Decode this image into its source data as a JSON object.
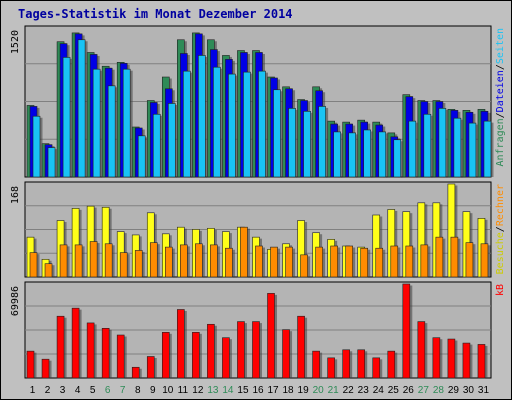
{
  "title": "Tages-Statistik im Monat Dezember 2014",
  "colors": {
    "background": "#c0c0c0",
    "plot": "#b4b4b4",
    "anfragen": "#2e8b57",
    "dateien": "#0000e6",
    "seiten": "#19c3f5",
    "besuche": "#ffff19",
    "rechner": "#ff8c00",
    "kb": "#ff0000",
    "weekday_label": "#000000",
    "weekend_label": "#2e8b57"
  },
  "legend": {
    "top": [
      {
        "label": "Anfragen",
        "color": "#2e8b57"
      },
      {
        "label": "/",
        "color": "#000000"
      },
      {
        "label": "Dateien",
        "color": "#0000e6"
      },
      {
        "label": "/",
        "color": "#000000"
      },
      {
        "label": "Seiten",
        "color": "#19c3f5"
      }
    ],
    "middle": [
      {
        "label": "Besuche",
        "color": "#cccc00"
      },
      {
        "label": "/",
        "color": "#000000"
      },
      {
        "label": "Rechner",
        "color": "#ff8c00"
      }
    ],
    "bottom": [
      {
        "label": "kB",
        "color": "#ff0000"
      }
    ]
  },
  "chart_data": {
    "type": "bar",
    "title": "Tages-Statistik im Monat Dezember 2014",
    "categories": [
      "1",
      "2",
      "3",
      "4",
      "5",
      "6",
      "7",
      "8",
      "9",
      "10",
      "11",
      "12",
      "13",
      "14",
      "15",
      "16",
      "17",
      "18",
      "19",
      "20",
      "21",
      "22",
      "23",
      "24",
      "25",
      "26",
      "27",
      "28",
      "29",
      "30",
      "31"
    ],
    "weekend_days": [
      "6",
      "7",
      "13",
      "14",
      "20",
      "21",
      "27",
      "28"
    ],
    "grid": true,
    "panels": [
      {
        "id": "top",
        "ylabel_max": "1520",
        "ylim": [
          0,
          1520
        ],
        "series": [
          {
            "name": "Anfragen",
            "color": "#2e8b57",
            "values": [
              730,
              340,
              1380,
              1470,
              1270,
              1130,
              1170,
              510,
              780,
              1020,
              1400,
              1470,
              1400,
              1240,
              1290,
              1290,
              1020,
              920,
              790,
              920,
              570,
              560,
              580,
              560,
              450,
              840,
              780,
              780,
              690,
              680,
              690
            ]
          },
          {
            "name": "Dateien",
            "color": "#0000e6",
            "values": [
              720,
              330,
              1360,
              1460,
              1250,
              1110,
              1160,
              500,
              760,
              900,
              1260,
              1460,
              1300,
              1200,
              1270,
              1270,
              1010,
              900,
              780,
              880,
              540,
              540,
              560,
              530,
              410,
              820,
              770,
              770,
              680,
              660,
              670
            ]
          },
          {
            "name": "Seiten",
            "color": "#19c3f5",
            "values": [
              620,
              300,
              1220,
              1400,
              1100,
              930,
              1100,
              420,
              640,
              750,
              1080,
              1240,
              1120,
              1050,
              1070,
              1080,
              890,
              700,
              670,
              720,
              460,
              450,
              480,
              460,
              380,
              570,
              640,
              700,
              600,
              550,
              570
            ]
          }
        ]
      },
      {
        "id": "middle",
        "ylabel_max": "168",
        "ylim": [
          0,
          168
        ],
        "series": [
          {
            "name": "Besuche",
            "color": "#ffff19",
            "values": [
              72,
              32,
              102,
              124,
              128,
              126,
              82,
              76,
              116,
              78,
              90,
              86,
              88,
              82,
              90,
              72,
              50,
              60,
              102,
              80,
              68,
              56,
              54,
              112,
              122,
              118,
              134,
              134,
              168,
              118,
              106
            ]
          },
          {
            "name": "Rechner",
            "color": "#ff8c00",
            "values": [
              44,
              24,
              58,
              58,
              64,
              60,
              44,
              48,
              62,
              54,
              58,
              60,
              58,
              52,
              90,
              56,
              54,
              54,
              40,
              54,
              56,
              56,
              52,
              52,
              56,
              56,
              58,
              72,
              72,
              62,
              60
            ]
          }
        ]
      },
      {
        "id": "bottom",
        "ylabel_max": "69986",
        "ylim": [
          0,
          69986
        ],
        "series": [
          {
            "name": "kB",
            "color": "#ff0000",
            "values": [
              20000,
              14000,
              46000,
              52000,
              41000,
              37000,
              32000,
              8000,
              16000,
              34000,
              51000,
              34000,
              40000,
              30000,
              42000,
              42000,
              63000,
              36000,
              46000,
              20000,
              15000,
              21000,
              21000,
              15000,
              20000,
              69986,
              42000,
              30000,
              29000,
              26000,
              25000
            ]
          }
        ]
      }
    ]
  }
}
